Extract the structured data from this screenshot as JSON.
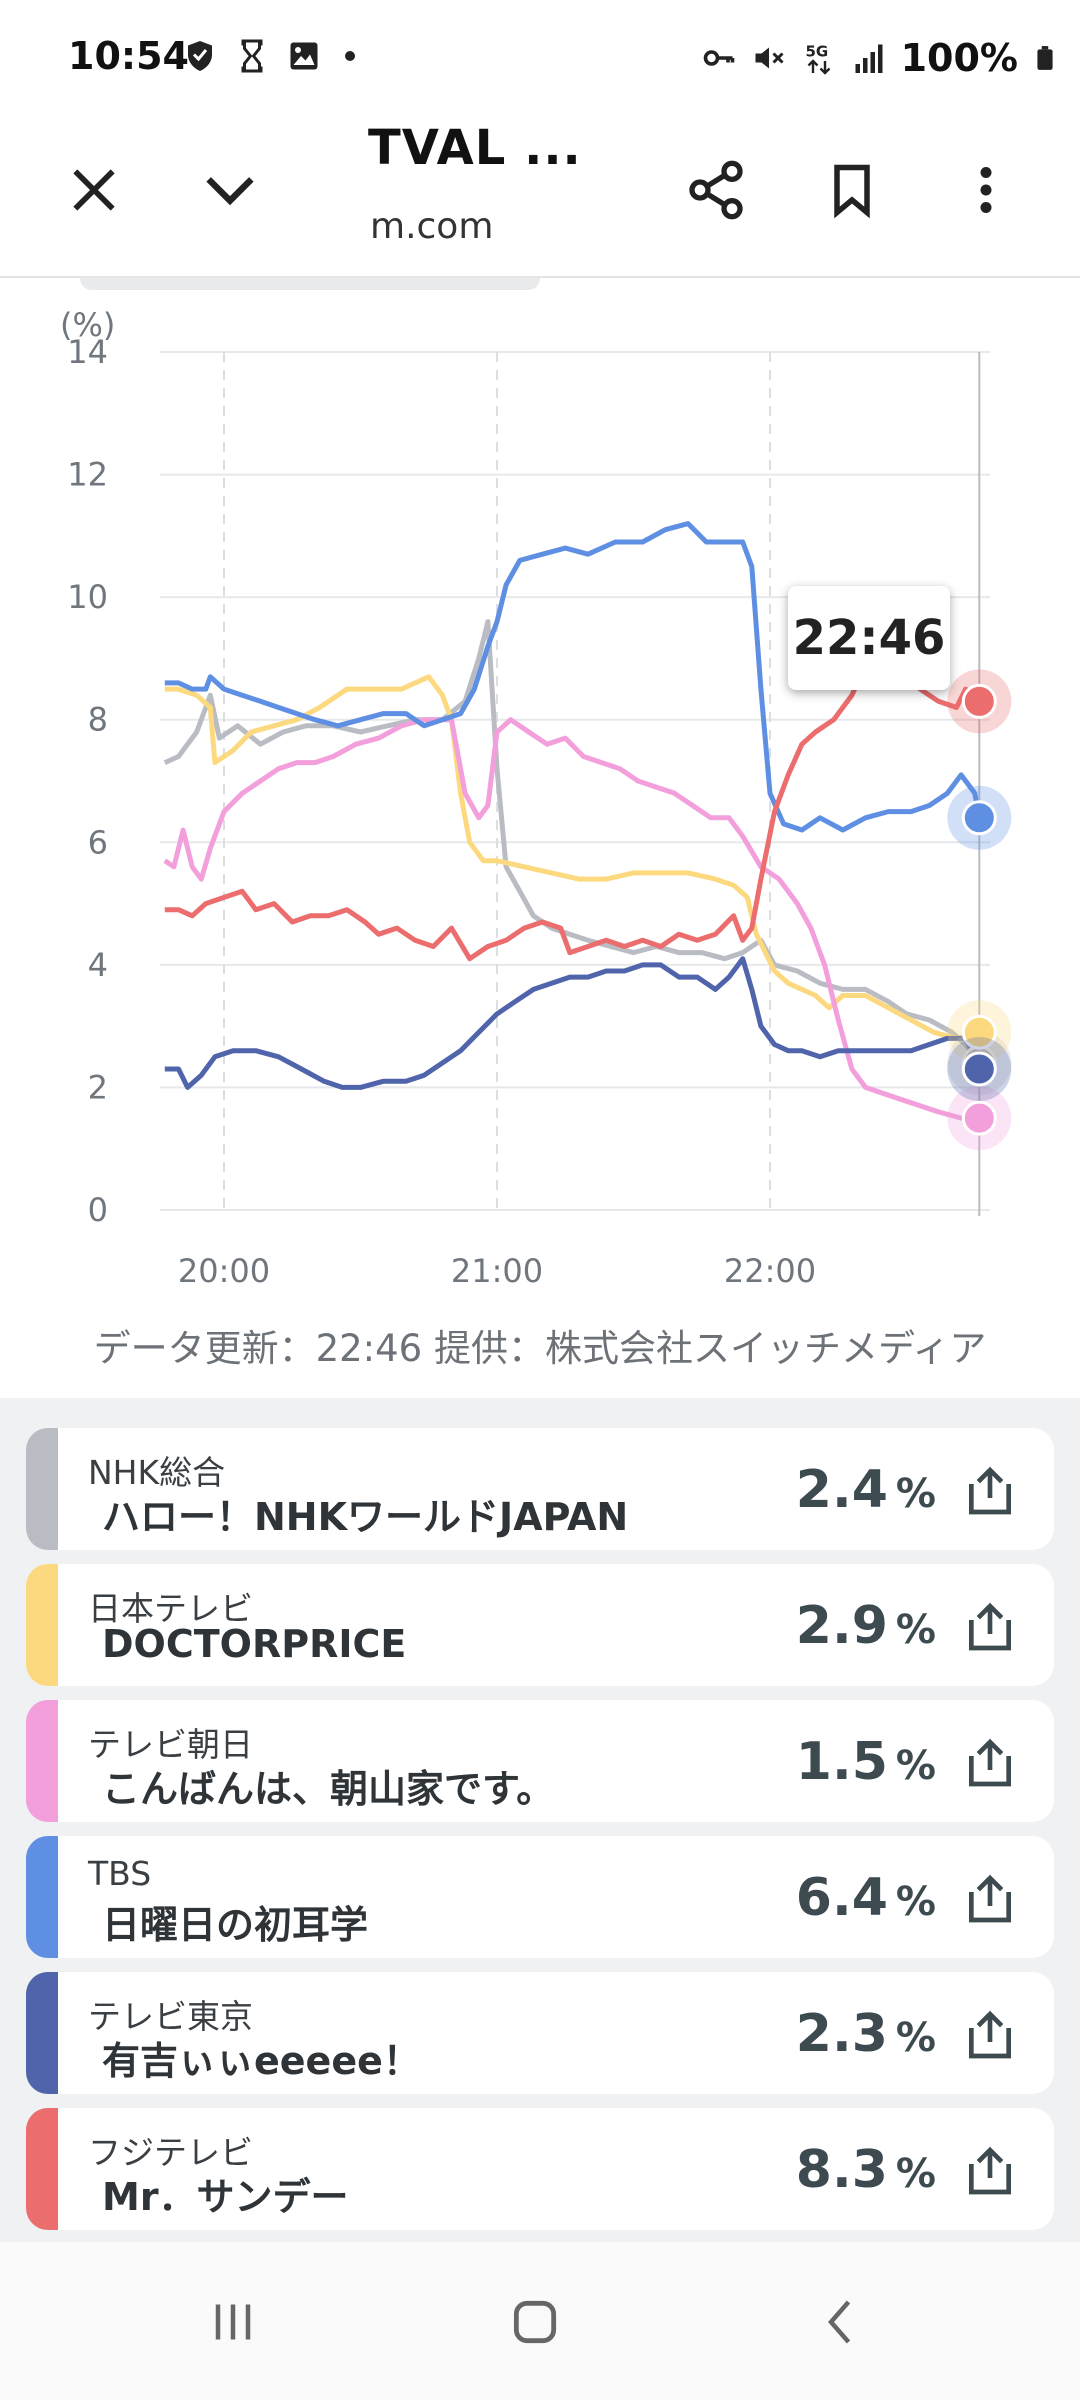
{
  "status_bar": {
    "time": "10:54",
    "battery": "100%",
    "icons_left": [
      "shield-icon",
      "hourglass-icon",
      "image-icon",
      "dot-icon"
    ],
    "icons_right": [
      "key-icon",
      "mute-icon",
      "5g-icon",
      "signal-icon",
      "battery-icon"
    ]
  },
  "browser": {
    "title": "TVAL ...",
    "url": "m.com",
    "close_icon": "close-icon",
    "collapse_icon": "chevron-down-icon",
    "share_icon": "share-icon",
    "bookmark_icon": "bookmark-icon",
    "menu_icon": "more-vert-icon"
  },
  "chart": {
    "tooltip_time": "22:46",
    "y_unit": "(%)",
    "update_note": "データ更新：22:46  提供：株式会社スイッチメディア"
  },
  "chart_data": {
    "type": "line",
    "ylabel": "(%)",
    "ylim": [
      0,
      14
    ],
    "yticks": [
      0,
      2,
      4,
      6,
      8,
      10,
      12,
      14
    ],
    "xlim": [
      -10,
      166
    ],
    "xticks": [
      {
        "value": 0,
        "label": "20:00"
      },
      {
        "value": 60,
        "label": "21:00"
      },
      {
        "value": 120,
        "label": "22:00"
      }
    ],
    "crosshair_x": 166,
    "grid": true,
    "series": [
      {
        "name": "NHK総合",
        "color": "#b9bcc2",
        "points": [
          [
            -13,
            7.3
          ],
          [
            -10,
            7.4
          ],
          [
            -6,
            7.8
          ],
          [
            -3,
            8.4
          ],
          [
            -1,
            7.7
          ],
          [
            3,
            7.9
          ],
          [
            8,
            7.6
          ],
          [
            13,
            7.8
          ],
          [
            18,
            7.9
          ],
          [
            24,
            7.9
          ],
          [
            30,
            7.8
          ],
          [
            36,
            7.9
          ],
          [
            42,
            8.0
          ],
          [
            48,
            8.0
          ],
          [
            53,
            8.3
          ],
          [
            56,
            9.0
          ],
          [
            58,
            9.6
          ],
          [
            60,
            7.2
          ],
          [
            62,
            5.6
          ],
          [
            65,
            5.2
          ],
          [
            68,
            4.8
          ],
          [
            72,
            4.6
          ],
          [
            76,
            4.5
          ],
          [
            80,
            4.4
          ],
          [
            85,
            4.3
          ],
          [
            90,
            4.2
          ],
          [
            95,
            4.3
          ],
          [
            100,
            4.2
          ],
          [
            105,
            4.2
          ],
          [
            110,
            4.1
          ],
          [
            114,
            4.2
          ],
          [
            118,
            4.4
          ],
          [
            121,
            4.0
          ],
          [
            126,
            3.9
          ],
          [
            131,
            3.7
          ],
          [
            136,
            3.6
          ],
          [
            141,
            3.6
          ],
          [
            146,
            3.4
          ],
          [
            150,
            3.2
          ],
          [
            155,
            3.1
          ],
          [
            160,
            2.9
          ],
          [
            163,
            2.7
          ],
          [
            166,
            2.4
          ]
        ]
      },
      {
        "name": "日本テレビ",
        "color": "#fcd97e",
        "points": [
          [
            -13,
            8.5
          ],
          [
            -10,
            8.5
          ],
          [
            -6,
            8.4
          ],
          [
            -3,
            8.2
          ],
          [
            -2,
            7.3
          ],
          [
            2,
            7.5
          ],
          [
            6,
            7.8
          ],
          [
            11,
            7.9
          ],
          [
            16,
            8.0
          ],
          [
            21,
            8.2
          ],
          [
            27,
            8.5
          ],
          [
            33,
            8.5
          ],
          [
            39,
            8.5
          ],
          [
            45,
            8.7
          ],
          [
            48,
            8.4
          ],
          [
            50,
            8.0
          ],
          [
            52,
            6.8
          ],
          [
            54,
            6.0
          ],
          [
            57,
            5.7
          ],
          [
            60,
            5.7
          ],
          [
            66,
            5.6
          ],
          [
            72,
            5.5
          ],
          [
            78,
            5.4
          ],
          [
            84,
            5.4
          ],
          [
            90,
            5.5
          ],
          [
            96,
            5.5
          ],
          [
            102,
            5.5
          ],
          [
            108,
            5.4
          ],
          [
            112,
            5.3
          ],
          [
            115,
            5.1
          ],
          [
            117,
            4.5
          ],
          [
            119,
            4.2
          ],
          [
            121,
            3.9
          ],
          [
            124,
            3.7
          ],
          [
            127,
            3.6
          ],
          [
            130,
            3.5
          ],
          [
            133,
            3.3
          ],
          [
            136,
            3.5
          ],
          [
            141,
            3.5
          ],
          [
            146,
            3.3
          ],
          [
            151,
            3.1
          ],
          [
            156,
            2.9
          ],
          [
            161,
            2.8
          ],
          [
            166,
            2.9
          ]
        ]
      },
      {
        "name": "テレビ朝日",
        "color": "#f29fdc",
        "points": [
          [
            -13,
            5.7
          ],
          [
            -11,
            5.6
          ],
          [
            -9,
            6.2
          ],
          [
            -7,
            5.6
          ],
          [
            -5,
            5.4
          ],
          [
            -3,
            5.9
          ],
          [
            0,
            6.5
          ],
          [
            4,
            6.8
          ],
          [
            8,
            7.0
          ],
          [
            12,
            7.2
          ],
          [
            16,
            7.3
          ],
          [
            20,
            7.3
          ],
          [
            24,
            7.4
          ],
          [
            29,
            7.6
          ],
          [
            34,
            7.7
          ],
          [
            39,
            7.9
          ],
          [
            44,
            8.0
          ],
          [
            50,
            8.0
          ],
          [
            53,
            6.8
          ],
          [
            56,
            6.4
          ],
          [
            58,
            6.6
          ],
          [
            60,
            7.8
          ],
          [
            63,
            8.0
          ],
          [
            67,
            7.8
          ],
          [
            71,
            7.6
          ],
          [
            75,
            7.7
          ],
          [
            79,
            7.4
          ],
          [
            83,
            7.3
          ],
          [
            87,
            7.2
          ],
          [
            91,
            7.0
          ],
          [
            95,
            6.9
          ],
          [
            99,
            6.8
          ],
          [
            103,
            6.6
          ],
          [
            107,
            6.4
          ],
          [
            111,
            6.4
          ],
          [
            114,
            6.1
          ],
          [
            118,
            5.6
          ],
          [
            122,
            5.4
          ],
          [
            126,
            5.0
          ],
          [
            129,
            4.6
          ],
          [
            132,
            4.0
          ],
          [
            135,
            3.1
          ],
          [
            138,
            2.3
          ],
          [
            141,
            2.0
          ],
          [
            145,
            1.9
          ],
          [
            149,
            1.8
          ],
          [
            153,
            1.7
          ],
          [
            157,
            1.6
          ],
          [
            162,
            1.5
          ],
          [
            166,
            1.5
          ]
        ]
      },
      {
        "name": "TBS",
        "color": "#5f8fe3",
        "points": [
          [
            -13,
            8.6
          ],
          [
            -10,
            8.6
          ],
          [
            -7,
            8.5
          ],
          [
            -4,
            8.5
          ],
          [
            -3,
            8.7
          ],
          [
            0,
            8.5
          ],
          [
            4,
            8.4
          ],
          [
            8,
            8.3
          ],
          [
            12,
            8.2
          ],
          [
            16,
            8.1
          ],
          [
            20,
            8.0
          ],
          [
            25,
            7.9
          ],
          [
            30,
            8.0
          ],
          [
            35,
            8.1
          ],
          [
            40,
            8.1
          ],
          [
            44,
            7.9
          ],
          [
            48,
            8.0
          ],
          [
            52,
            8.1
          ],
          [
            55,
            8.5
          ],
          [
            58,
            9.2
          ],
          [
            60,
            9.6
          ],
          [
            62,
            10.2
          ],
          [
            65,
            10.6
          ],
          [
            70,
            10.7
          ],
          [
            75,
            10.8
          ],
          [
            80,
            10.7
          ],
          [
            86,
            10.9
          ],
          [
            92,
            10.9
          ],
          [
            97,
            11.1
          ],
          [
            102,
            11.2
          ],
          [
            106,
            10.9
          ],
          [
            110,
            10.9
          ],
          [
            114,
            10.9
          ],
          [
            116,
            10.5
          ],
          [
            118,
            8.5
          ],
          [
            120,
            6.8
          ],
          [
            123,
            6.3
          ],
          [
            127,
            6.2
          ],
          [
            131,
            6.4
          ],
          [
            136,
            6.2
          ],
          [
            141,
            6.4
          ],
          [
            146,
            6.5
          ],
          [
            151,
            6.5
          ],
          [
            155,
            6.6
          ],
          [
            159,
            6.8
          ],
          [
            162,
            7.1
          ],
          [
            165,
            6.8
          ],
          [
            166,
            6.4
          ]
        ]
      },
      {
        "name": "テレビ東京",
        "color": "#4f64aa",
        "points": [
          [
            -13,
            2.3
          ],
          [
            -10,
            2.3
          ],
          [
            -8,
            2.0
          ],
          [
            -5,
            2.2
          ],
          [
            -2,
            2.5
          ],
          [
            2,
            2.6
          ],
          [
            7,
            2.6
          ],
          [
            12,
            2.5
          ],
          [
            17,
            2.3
          ],
          [
            22,
            2.1
          ],
          [
            26,
            2.0
          ],
          [
            30,
            2.0
          ],
          [
            35,
            2.1
          ],
          [
            40,
            2.1
          ],
          [
            44,
            2.2
          ],
          [
            48,
            2.4
          ],
          [
            52,
            2.6
          ],
          [
            56,
            2.9
          ],
          [
            60,
            3.2
          ],
          [
            64,
            3.4
          ],
          [
            68,
            3.6
          ],
          [
            72,
            3.7
          ],
          [
            76,
            3.8
          ],
          [
            80,
            3.8
          ],
          [
            84,
            3.9
          ],
          [
            88,
            3.9
          ],
          [
            92,
            4.0
          ],
          [
            96,
            4.0
          ],
          [
            100,
            3.8
          ],
          [
            104,
            3.8
          ],
          [
            108,
            3.6
          ],
          [
            111,
            3.8
          ],
          [
            114,
            4.1
          ],
          [
            116,
            3.6
          ],
          [
            118,
            3.0
          ],
          [
            121,
            2.7
          ],
          [
            124,
            2.6
          ],
          [
            127,
            2.6
          ],
          [
            131,
            2.5
          ],
          [
            135,
            2.6
          ],
          [
            139,
            2.6
          ],
          [
            143,
            2.6
          ],
          [
            147,
            2.6
          ],
          [
            151,
            2.6
          ],
          [
            155,
            2.7
          ],
          [
            159,
            2.8
          ],
          [
            163,
            2.8
          ],
          [
            166,
            2.3
          ]
        ]
      },
      {
        "name": "フジテレビ",
        "color": "#eb6d6d",
        "points": [
          [
            -13,
            4.9
          ],
          [
            -10,
            4.9
          ],
          [
            -7,
            4.8
          ],
          [
            -4,
            5.0
          ],
          [
            0,
            5.1
          ],
          [
            4,
            5.2
          ],
          [
            7,
            4.9
          ],
          [
            11,
            5.0
          ],
          [
            15,
            4.7
          ],
          [
            19,
            4.8
          ],
          [
            23,
            4.8
          ],
          [
            27,
            4.9
          ],
          [
            31,
            4.7
          ],
          [
            34,
            4.5
          ],
          [
            38,
            4.6
          ],
          [
            42,
            4.4
          ],
          [
            46,
            4.3
          ],
          [
            50,
            4.6
          ],
          [
            54,
            4.1
          ],
          [
            58,
            4.3
          ],
          [
            62,
            4.4
          ],
          [
            66,
            4.6
          ],
          [
            70,
            4.7
          ],
          [
            74,
            4.6
          ],
          [
            76,
            4.2
          ],
          [
            80,
            4.3
          ],
          [
            84,
            4.4
          ],
          [
            88,
            4.3
          ],
          [
            92,
            4.4
          ],
          [
            96,
            4.3
          ],
          [
            100,
            4.5
          ],
          [
            104,
            4.4
          ],
          [
            108,
            4.5
          ],
          [
            112,
            4.8
          ],
          [
            114,
            4.4
          ],
          [
            116,
            4.6
          ],
          [
            118,
            5.4
          ],
          [
            121,
            6.5
          ],
          [
            124,
            7.1
          ],
          [
            127,
            7.6
          ],
          [
            130,
            7.8
          ],
          [
            134,
            8.0
          ],
          [
            138,
            8.4
          ],
          [
            141,
            8.9
          ],
          [
            145,
            8.6
          ],
          [
            149,
            8.8
          ],
          [
            153,
            8.5
          ],
          [
            157,
            8.3
          ],
          [
            161,
            8.2
          ],
          [
            163,
            8.5
          ],
          [
            166,
            8.3
          ]
        ]
      }
    ]
  },
  "cards": [
    {
      "station": "NHK総合",
      "program": "ハロー！NHKワールドJAPAN",
      "rating": "2.4",
      "unit": "%",
      "color": "#b9bcc2"
    },
    {
      "station": "日本テレビ",
      "program": "DOCTORPRICE",
      "rating": "2.9",
      "unit": "%",
      "color": "#fcd97e"
    },
    {
      "station": "テレビ朝日",
      "program": "こんばんは、朝山家です。",
      "rating": "1.5",
      "unit": "%",
      "color": "#f29fdc"
    },
    {
      "station": "TBS",
      "program": "日曜日の初耳学",
      "rating": "6.4",
      "unit": "%",
      "color": "#5f8fe3"
    },
    {
      "station": "テレビ東京",
      "program": "有吉ぃぃeeeee！",
      "rating": "2.3",
      "unit": "%",
      "color": "#4f64aa"
    },
    {
      "station": "フジテレビ",
      "program": "Mr．サンデー",
      "rating": "8.3",
      "unit": "%",
      "color": "#eb6d6d"
    }
  ],
  "navbar": {
    "recents_icon": "recents-icon",
    "home_icon": "home-icon",
    "back_icon": "back-icon"
  }
}
